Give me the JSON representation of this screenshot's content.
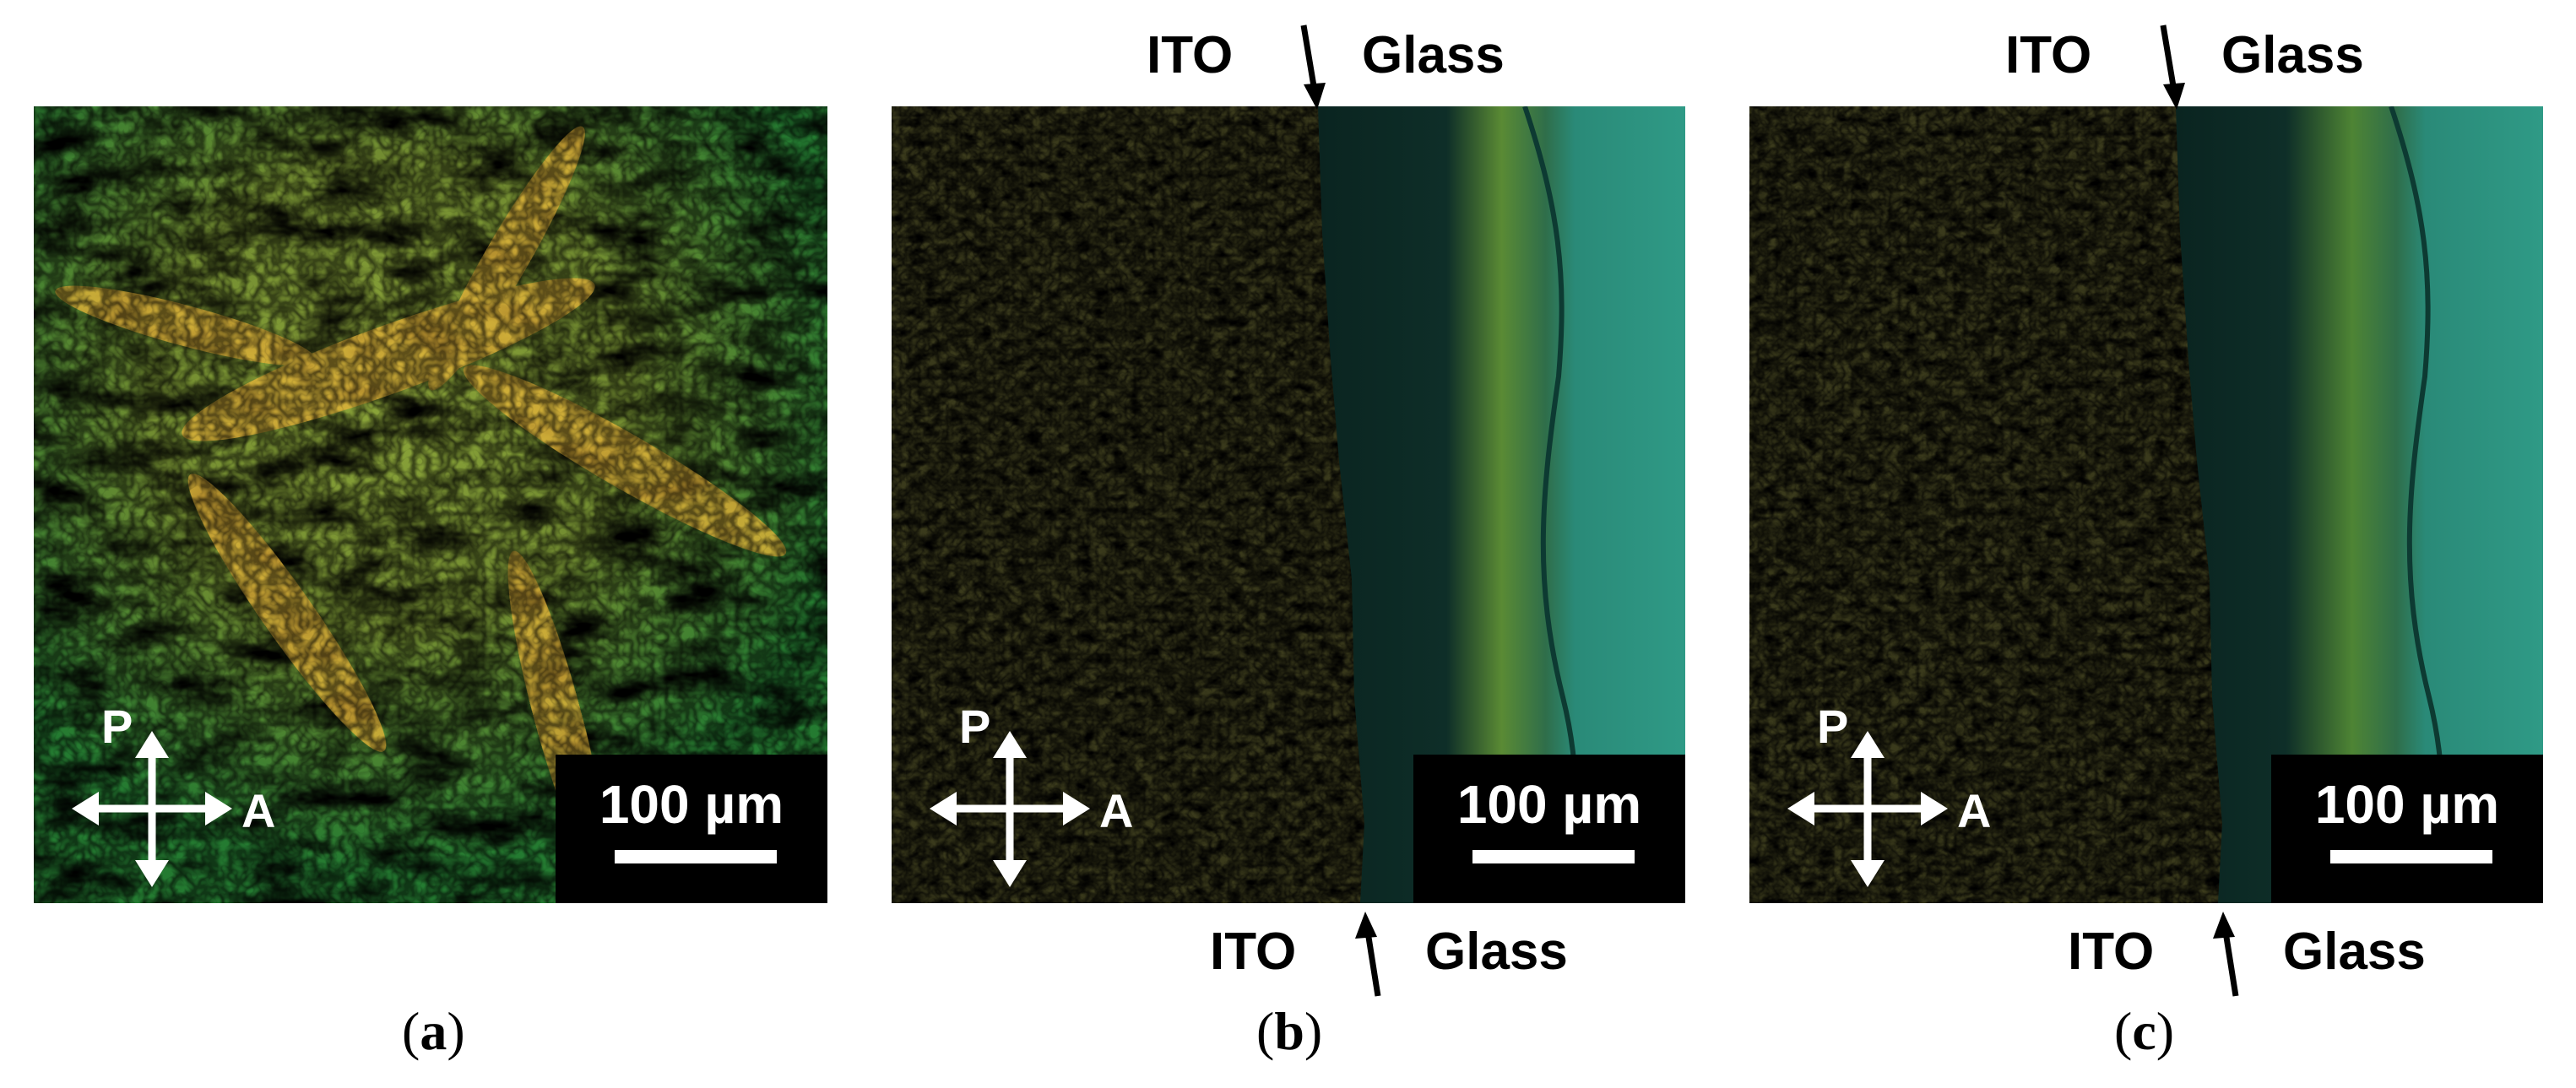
{
  "panels": [
    {
      "id": "a",
      "caption_open": "(",
      "caption_letter": "a",
      "caption_close": ")",
      "scale_bar": "100 µm",
      "polarizer": "P",
      "analyzer": "A"
    },
    {
      "id": "b",
      "caption_open": "(",
      "caption_letter": "b",
      "caption_close": ")",
      "scale_bar": "100 µm",
      "polarizer": "P",
      "analyzer": "A",
      "top_left_label": "ITO",
      "top_right_label": "Glass",
      "bottom_left_label": "ITO",
      "bottom_right_label": "Glass"
    },
    {
      "id": "c",
      "caption_open": "(",
      "caption_letter": "c",
      "caption_close": ")",
      "scale_bar": "100 µm",
      "polarizer": "P",
      "analyzer": "A",
      "top_left_label": "ITO",
      "top_right_label": "Glass",
      "bottom_left_label": "ITO",
      "bottom_right_label": "Glass"
    }
  ],
  "colors": {
    "texture_green": "#1f9a3c",
    "texture_yellow": "#e7b52f",
    "dark_region": "#0b2a26",
    "glass_teal": "#2a8a78",
    "scale_box": "#000000"
  }
}
